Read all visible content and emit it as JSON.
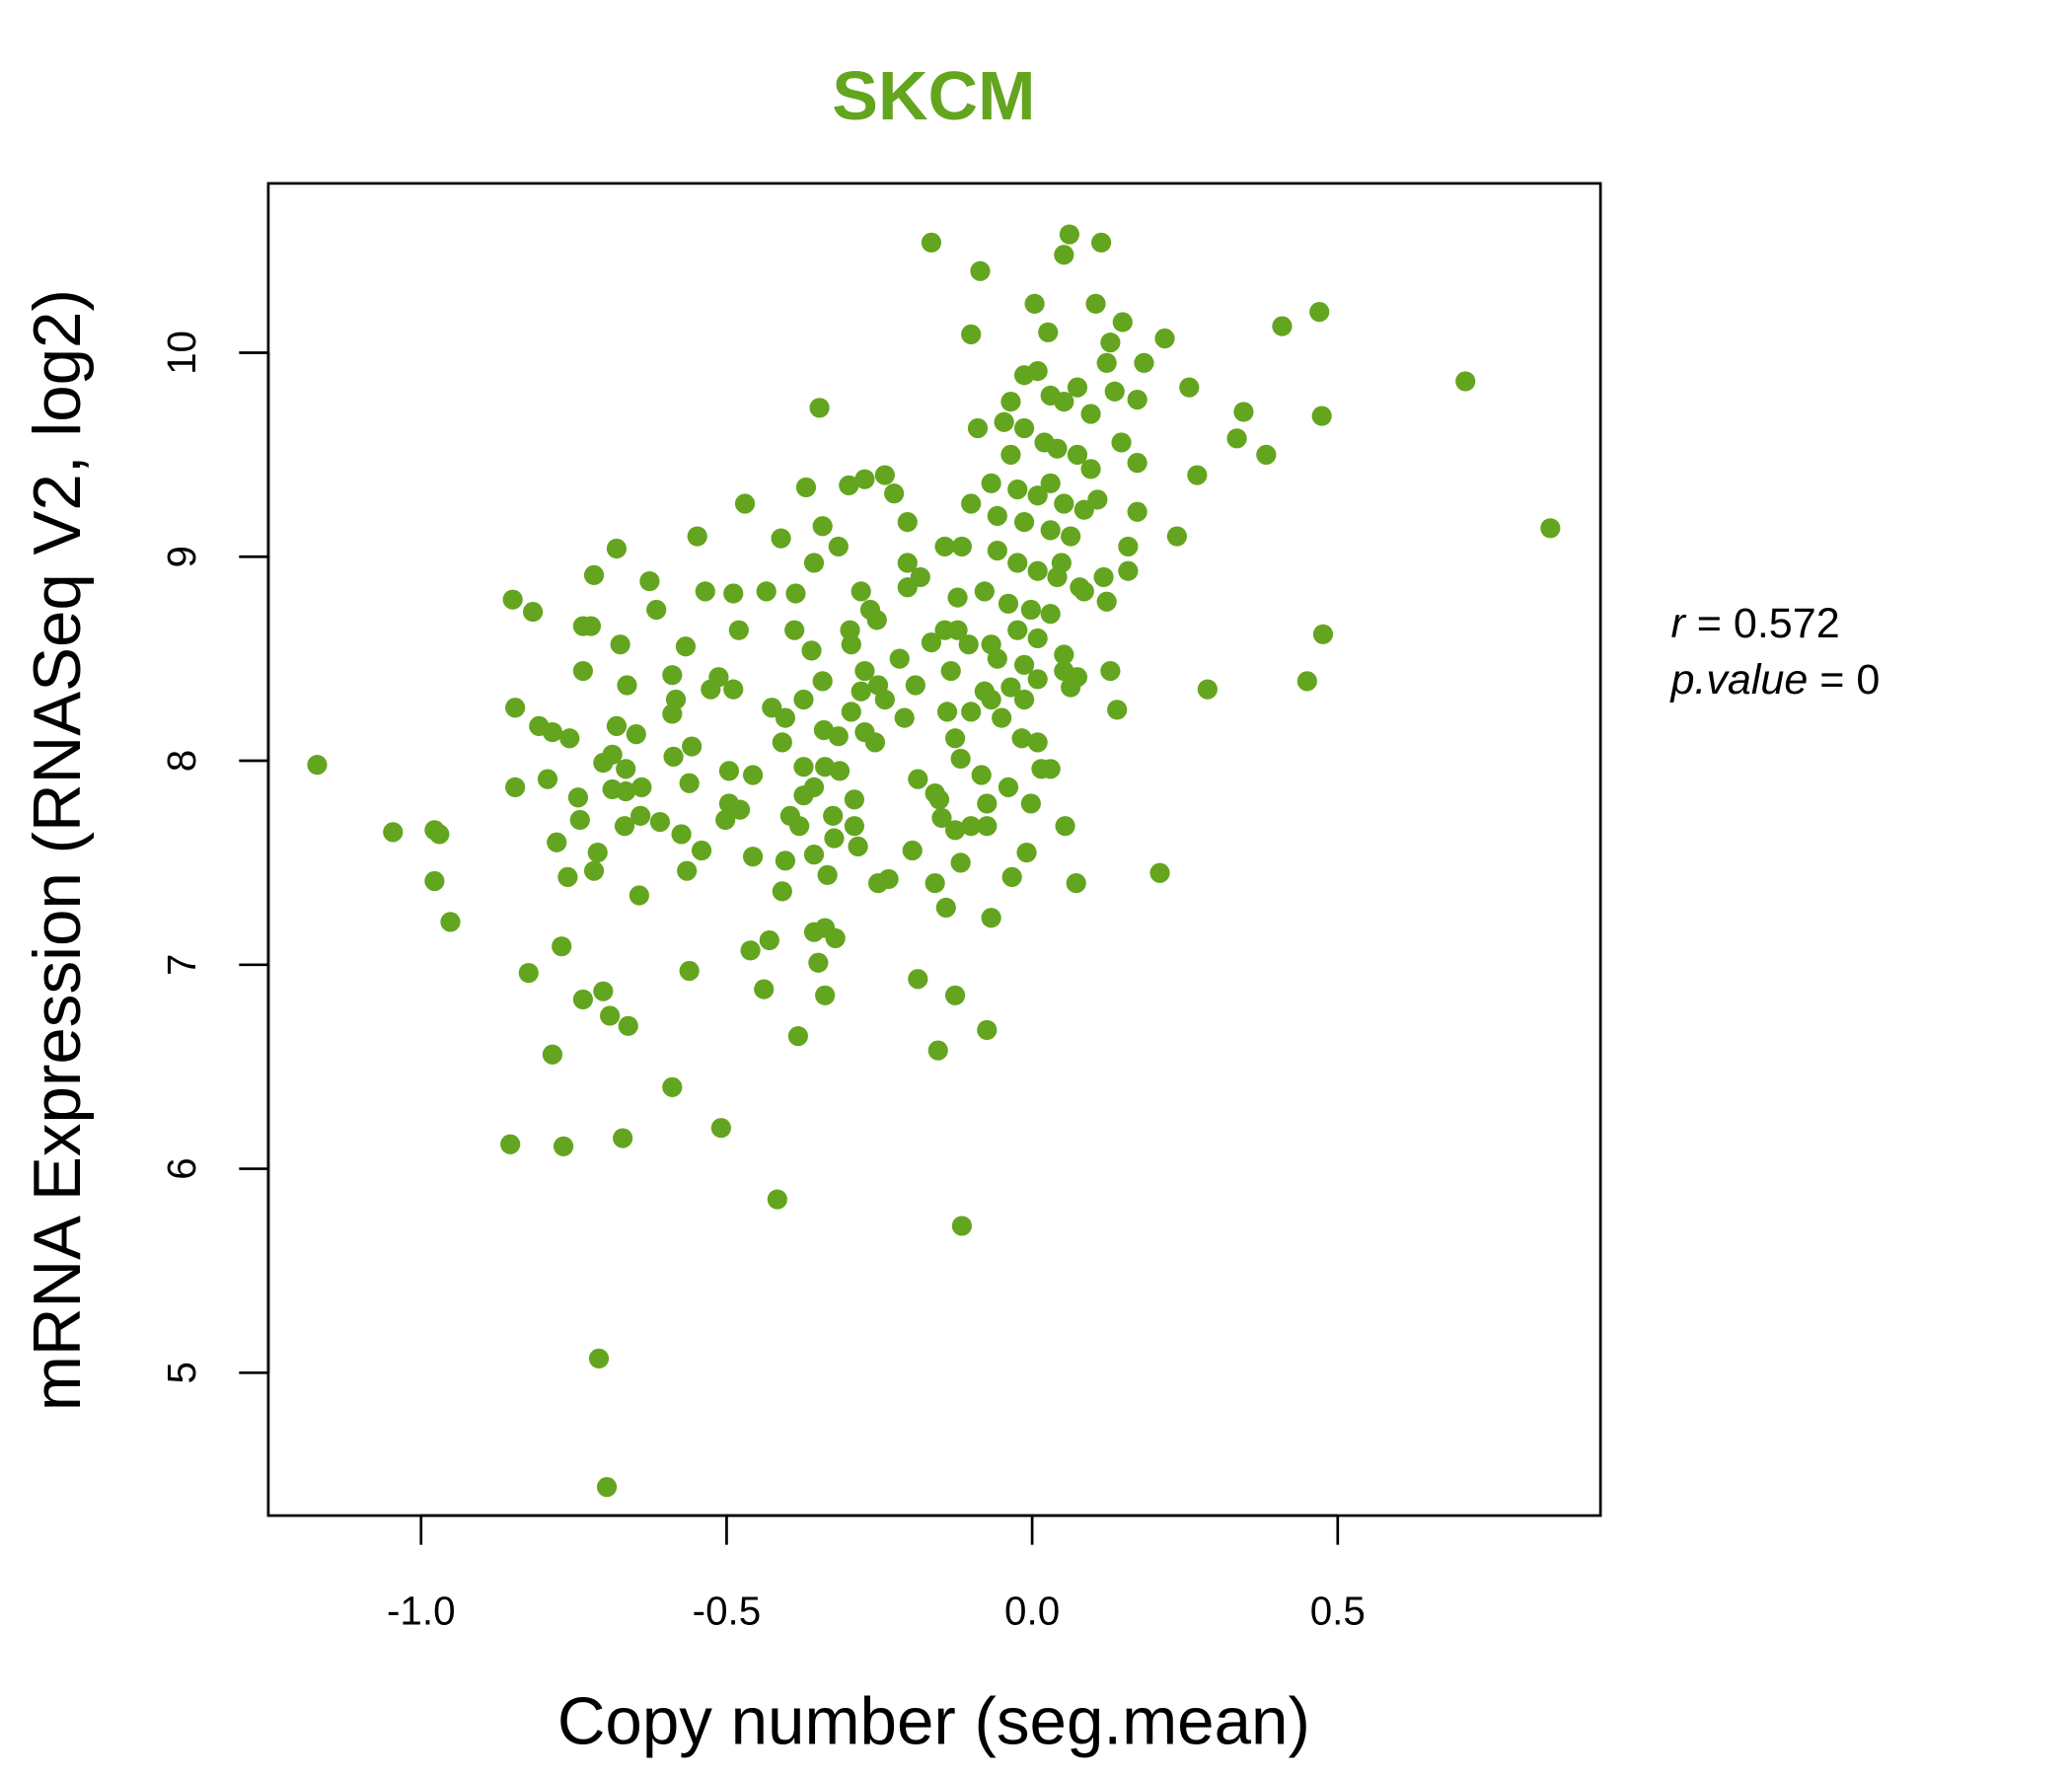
{
  "chart_data": {
    "type": "scatter",
    "title": "SKCM",
    "xlabel": "Copy number (seg.mean)",
    "ylabel": "mRNA Expression (RNASeq V2, log2)",
    "xlim": [
      -1.25,
      0.93
    ],
    "ylim": [
      4.3,
      10.83
    ],
    "xticks": [
      -1.0,
      -0.5,
      0.0,
      0.5
    ],
    "xtick_labels": [
      "-1.0",
      "-0.5",
      "0.0",
      "0.5"
    ],
    "yticks": [
      5,
      6,
      7,
      8,
      9,
      10
    ],
    "ytick_labels": [
      "5",
      "6",
      "7",
      "8",
      "9",
      "10"
    ],
    "grid": false,
    "color": "#63a51f",
    "annotations": {
      "r_label": "r",
      "r_value": "= 0.572",
      "p_label": "p.value",
      "p_value": "= 0"
    },
    "points": [
      [
        -1.17,
        7.98
      ],
      [
        -1.046,
        7.65
      ],
      [
        -0.978,
        7.66
      ],
      [
        -0.97,
        7.64
      ],
      [
        -0.978,
        7.41
      ],
      [
        -0.952,
        7.21
      ],
      [
        -0.85,
        8.79
      ],
      [
        -0.817,
        8.73
      ],
      [
        -0.846,
        8.26
      ],
      [
        -0.846,
        7.87
      ],
      [
        -0.807,
        8.17
      ],
      [
        -0.785,
        8.14
      ],
      [
        -0.757,
        8.11
      ],
      [
        -0.793,
        7.91
      ],
      [
        -0.743,
        7.82
      ],
      [
        -0.74,
        7.71
      ],
      [
        -0.778,
        7.6
      ],
      [
        -0.76,
        7.43
      ],
      [
        -0.717,
        8.91
      ],
      [
        -0.68,
        9.04
      ],
      [
        -0.735,
        8.66
      ],
      [
        -0.722,
        8.66
      ],
      [
        -0.735,
        8.44
      ],
      [
        -0.674,
        8.57
      ],
      [
        -0.663,
        8.37
      ],
      [
        -0.68,
        8.17
      ],
      [
        -0.648,
        8.13
      ],
      [
        -0.702,
        7.99
      ],
      [
        -0.687,
        8.03
      ],
      [
        -0.665,
        7.96
      ],
      [
        -0.687,
        7.86
      ],
      [
        -0.665,
        7.85
      ],
      [
        -0.639,
        7.87
      ],
      [
        -0.667,
        7.68
      ],
      [
        -0.641,
        7.73
      ],
      [
        -0.711,
        7.55
      ],
      [
        -0.717,
        7.46
      ],
      [
        -0.643,
        7.34
      ],
      [
        -0.77,
        7.09
      ],
      [
        -0.824,
        6.96
      ],
      [
        -0.735,
        6.83
      ],
      [
        -0.702,
        6.87
      ],
      [
        -0.691,
        6.75
      ],
      [
        -0.661,
        6.7
      ],
      [
        -0.785,
        6.56
      ],
      [
        -0.589,
        6.4
      ],
      [
        -0.509,
        6.2
      ],
      [
        -0.854,
        6.12
      ],
      [
        -0.767,
        6.11
      ],
      [
        -0.67,
        6.15
      ],
      [
        -0.709,
        5.07
      ],
      [
        -0.696,
        4.44
      ],
      [
        -0.417,
        5.85
      ],
      [
        -0.115,
        5.72
      ],
      [
        -0.626,
        8.88
      ],
      [
        -0.615,
        8.74
      ],
      [
        -0.548,
        9.1
      ],
      [
        -0.47,
        9.26
      ],
      [
        -0.589,
        8.42
      ],
      [
        -0.583,
        8.3
      ],
      [
        -0.567,
        8.56
      ],
      [
        -0.535,
        8.83
      ],
      [
        -0.489,
        8.82
      ],
      [
        -0.48,
        8.64
      ],
      [
        -0.513,
        8.41
      ],
      [
        -0.526,
        8.35
      ],
      [
        -0.489,
        8.35
      ],
      [
        -0.589,
        8.23
      ],
      [
        -0.557,
        8.07
      ],
      [
        -0.587,
        8.02
      ],
      [
        -0.561,
        7.89
      ],
      [
        -0.496,
        7.95
      ],
      [
        -0.457,
        7.93
      ],
      [
        -0.574,
        7.64
      ],
      [
        -0.541,
        7.56
      ],
      [
        -0.565,
        7.46
      ],
      [
        -0.496,
        7.79
      ],
      [
        -0.478,
        7.76
      ],
      [
        -0.502,
        7.71
      ],
      [
        -0.457,
        7.53
      ],
      [
        -0.609,
        7.7
      ],
      [
        -0.561,
        6.97
      ],
      [
        -0.461,
        7.07
      ],
      [
        -0.43,
        7.12
      ],
      [
        -0.439,
        6.88
      ],
      [
        -0.383,
        6.65
      ],
      [
        -0.411,
        9.09
      ],
      [
        -0.37,
        9.34
      ],
      [
        -0.348,
        9.73
      ],
      [
        -0.435,
        8.83
      ],
      [
        -0.387,
        8.82
      ],
      [
        -0.357,
        8.97
      ],
      [
        -0.317,
        9.05
      ],
      [
        -0.343,
        9.15
      ],
      [
        -0.3,
        9.35
      ],
      [
        -0.274,
        9.38
      ],
      [
        -0.241,
        9.4
      ],
      [
        -0.226,
        9.31
      ],
      [
        -0.204,
        9.17
      ],
      [
        -0.389,
        8.64
      ],
      [
        -0.361,
        8.54
      ],
      [
        -0.343,
        8.39
      ],
      [
        -0.426,
        8.26
      ],
      [
        -0.404,
        8.21
      ],
      [
        -0.374,
        8.3
      ],
      [
        -0.341,
        8.15
      ],
      [
        -0.317,
        8.12
      ],
      [
        -0.409,
        8.09
      ],
      [
        -0.374,
        7.97
      ],
      [
        -0.339,
        7.97
      ],
      [
        -0.357,
        7.87
      ],
      [
        -0.315,
        7.95
      ],
      [
        -0.374,
        7.83
      ],
      [
        -0.396,
        7.73
      ],
      [
        -0.381,
        7.68
      ],
      [
        -0.326,
        7.73
      ],
      [
        -0.324,
        7.62
      ],
      [
        -0.404,
        7.51
      ],
      [
        -0.357,
        7.54
      ],
      [
        -0.335,
        7.44
      ],
      [
        -0.409,
        7.36
      ],
      [
        -0.357,
        7.16
      ],
      [
        -0.339,
        7.18
      ],
      [
        -0.322,
        7.13
      ],
      [
        -0.35,
        7.01
      ],
      [
        -0.339,
        6.85
      ],
      [
        -0.28,
        8.83
      ],
      [
        -0.265,
        8.74
      ],
      [
        -0.298,
        8.64
      ],
      [
        -0.254,
        8.69
      ],
      [
        -0.296,
        8.57
      ],
      [
        -0.274,
        8.44
      ],
      [
        -0.252,
        8.37
      ],
      [
        -0.28,
        8.34
      ],
      [
        -0.241,
        8.3
      ],
      [
        -0.296,
        8.24
      ],
      [
        -0.274,
        8.14
      ],
      [
        -0.257,
        8.09
      ],
      [
        -0.209,
        8.21
      ],
      [
        -0.191,
        8.37
      ],
      [
        -0.217,
        8.5
      ],
      [
        -0.291,
        7.81
      ],
      [
        -0.291,
        7.68
      ],
      [
        -0.285,
        7.58
      ],
      [
        -0.252,
        7.4
      ],
      [
        -0.235,
        7.42
      ],
      [
        -0.196,
        7.56
      ],
      [
        -0.187,
        6.93
      ],
      [
        -0.154,
        6.58
      ],
      [
        -0.204,
        8.97
      ],
      [
        -0.183,
        8.9
      ],
      [
        -0.204,
        8.85
      ],
      [
        -0.143,
        9.05
      ],
      [
        -0.115,
        9.05
      ],
      [
        -0.165,
        10.54
      ],
      [
        -0.085,
        10.4
      ],
      [
        -0.1,
        10.09
      ],
      [
        0.004,
        10.24
      ],
      [
        0.052,
        10.48
      ],
      [
        0.061,
        10.58
      ],
      [
        0.113,
        10.54
      ],
      [
        0.026,
        10.1
      ],
      [
        0.104,
        10.24
      ],
      [
        0.148,
        10.15
      ],
      [
        0.217,
        10.07
      ],
      [
        0.183,
        9.95
      ],
      [
        0.122,
        9.95
      ],
      [
        0.128,
        10.05
      ],
      [
        0.257,
        9.83
      ],
      [
        0.346,
        9.71
      ],
      [
        0.335,
        9.58
      ],
      [
        0.409,
        10.13
      ],
      [
        0.47,
        10.2
      ],
      [
        0.474,
        9.69
      ],
      [
        0.383,
        9.5
      ],
      [
        0.709,
        9.86
      ],
      [
        0.848,
        9.14
      ],
      [
        0.476,
        8.62
      ],
      [
        0.45,
        8.39
      ],
      [
        0.287,
        8.35
      ],
      [
        0.237,
        9.1
      ],
      [
        0.27,
        9.4
      ],
      [
        0.209,
        7.45
      ],
      [
        0.139,
        8.25
      ],
      [
        0.128,
        8.44
      ],
      [
        0.172,
        9.46
      ],
      [
        0.146,
        9.56
      ],
      [
        0.172,
        9.77
      ],
      [
        0.135,
        9.81
      ],
      [
        0.172,
        9.22
      ],
      [
        0.157,
        9.05
      ],
      [
        0.157,
        8.93
      ],
      [
        0.117,
        8.9
      ],
      [
        0.122,
        8.78
      ],
      [
        0.078,
        8.85
      ],
      [
        0.048,
        8.97
      ],
      [
        -0.046,
        9.66
      ],
      [
        -0.035,
        9.76
      ],
      [
        -0.013,
        9.89
      ],
      [
        0.009,
        9.91
      ],
      [
        0.03,
        9.79
      ],
      [
        0.052,
        9.76
      ],
      [
        0.074,
        9.83
      ],
      [
        0.096,
        9.7
      ],
      [
        -0.013,
        9.63
      ],
      [
        0.02,
        9.56
      ],
      [
        0.041,
        9.53
      ],
      [
        0.074,
        9.5
      ],
      [
        0.096,
        9.43
      ],
      [
        -0.089,
        9.63
      ],
      [
        -0.035,
        9.5
      ],
      [
        -0.067,
        9.36
      ],
      [
        -0.024,
        9.33
      ],
      [
        0.009,
        9.3
      ],
      [
        0.03,
        9.36
      ],
      [
        0.052,
        9.26
      ],
      [
        0.085,
        9.23
      ],
      [
        0.107,
        9.28
      ],
      [
        -0.1,
        9.26
      ],
      [
        -0.057,
        9.2
      ],
      [
        -0.013,
        9.17
      ],
      [
        0.03,
        9.13
      ],
      [
        0.063,
        9.1
      ],
      [
        -0.057,
        9.03
      ],
      [
        -0.024,
        8.97
      ],
      [
        0.009,
        8.93
      ],
      [
        0.041,
        8.9
      ],
      [
        0.085,
        8.83
      ],
      [
        -0.078,
        8.83
      ],
      [
        -0.122,
        8.8
      ],
      [
        -0.039,
        8.77
      ],
      [
        -0.002,
        8.74
      ],
      [
        0.03,
        8.72
      ],
      [
        -0.024,
        8.64
      ],
      [
        0.009,
        8.6
      ],
      [
        -0.067,
        8.57
      ],
      [
        -0.122,
        8.64
      ],
      [
        -0.104,
        8.57
      ],
      [
        -0.143,
        8.64
      ],
      [
        -0.165,
        8.58
      ],
      [
        -0.057,
        8.5
      ],
      [
        -0.013,
        8.47
      ],
      [
        0.009,
        8.4
      ],
      [
        0.052,
        8.44
      ],
      [
        0.063,
        8.36
      ],
      [
        -0.035,
        8.36
      ],
      [
        -0.078,
        8.34
      ],
      [
        -0.133,
        8.44
      ],
      [
        -0.1,
        8.24
      ],
      [
        -0.067,
        8.3
      ],
      [
        -0.05,
        8.21
      ],
      [
        -0.013,
        8.3
      ],
      [
        -0.139,
        8.24
      ],
      [
        -0.126,
        8.11
      ],
      [
        -0.117,
        8.01
      ],
      [
        -0.083,
        7.93
      ],
      [
        -0.039,
        7.87
      ],
      [
        -0.017,
        8.11
      ],
      [
        0.009,
        8.09
      ],
      [
        0.015,
        7.96
      ],
      [
        0.03,
        7.96
      ],
      [
        -0.002,
        7.79
      ],
      [
        -0.152,
        7.81
      ],
      [
        -0.148,
        7.72
      ],
      [
        -0.126,
        7.66
      ],
      [
        -0.1,
        7.68
      ],
      [
        -0.074,
        7.68
      ],
      [
        -0.074,
        7.79
      ],
      [
        -0.117,
        7.5
      ],
      [
        -0.141,
        7.28
      ],
      [
        -0.159,
        7.4
      ],
      [
        -0.009,
        7.55
      ],
      [
        -0.033,
        7.43
      ],
      [
        -0.067,
        7.23
      ],
      [
        -0.126,
        6.85
      ],
      [
        -0.074,
        6.68
      ],
      [
        0.054,
        7.68
      ],
      [
        0.072,
        7.4
      ],
      [
        0.052,
        8.52
      ],
      [
        0.074,
        8.41
      ],
      [
        -0.159,
        7.84
      ],
      [
        -0.187,
        7.91
      ]
    ]
  }
}
